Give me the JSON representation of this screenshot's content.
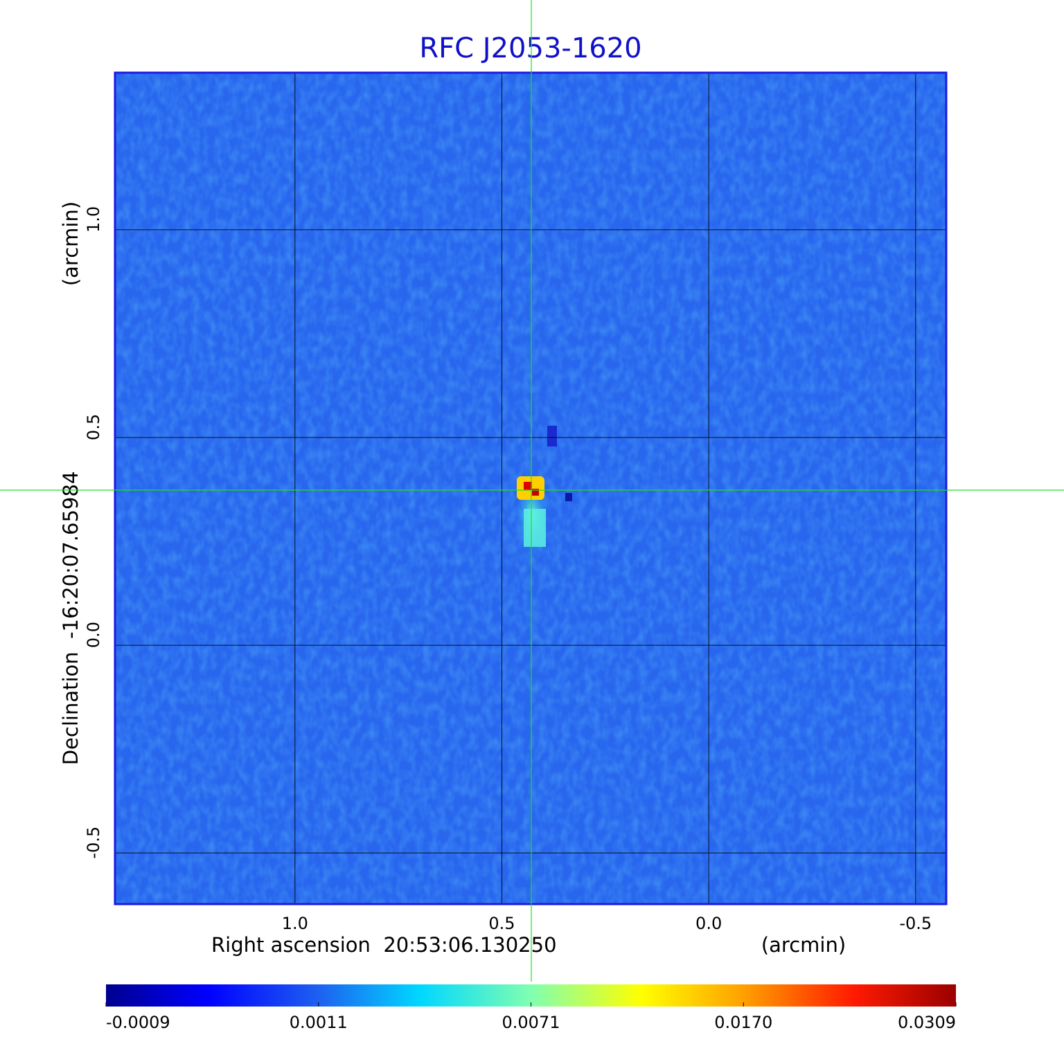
{
  "chart_data": {
    "type": "image",
    "title": "RFC J2053-1620",
    "x_label": "Right ascension  20:53:06.130250",
    "x_unit": "(arcmin)",
    "y_label": "Declination  -16:20:07.65984",
    "y_unit": "(arcmin)",
    "xlim": [
      1.435,
      -0.574
    ],
    "ylim": [
      -0.623,
      1.378
    ],
    "xticks": [
      {
        "value": 1,
        "label": "1.0"
      },
      {
        "value": 0.5,
        "label": "0.5"
      },
      {
        "value": 0,
        "label": "0.0"
      },
      -0.5
    ],
    "yticks": [
      {
        "value": 1,
        "label": "1.0"
      },
      {
        "value": 0.5,
        "label": "0.5"
      },
      {
        "value": 0,
        "label": "0.0"
      },
      -0.5
    ],
    "grid": true,
    "colorbar": {
      "ticks": [
        -0.0009,
        0.0011,
        0.0071,
        {
          "value": 0.017,
          "label": "0.0170"
        },
        0.0309
      ]
    }
  }
}
